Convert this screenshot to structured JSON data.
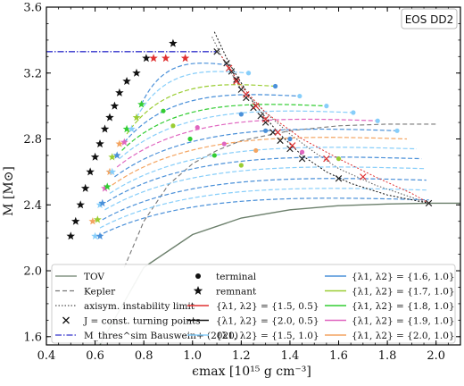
{
  "chart_data": {
    "type": "line",
    "ylabel": "M [M⊙]",
    "xlabel": "ϵmax [10¹⁵ g cm⁻³]",
    "annotation": "EOS DD2",
    "xlim": [
      0.4,
      2.1
    ],
    "ylim": [
      1.55,
      3.6
    ],
    "xticks": [
      0.4,
      0.6,
      0.8,
      1.0,
      1.2,
      1.4,
      1.6,
      1.8,
      2.0
    ],
    "xtick_labels": [
      "0.4",
      "0.6",
      "0.8",
      "1.0",
      "1.2",
      "1.4",
      "1.6",
      "1.8",
      "2.0"
    ],
    "yticks": [
      1.6,
      2.0,
      2.4,
      2.8,
      3.2,
      3.6
    ],
    "ytick_labels": [
      "1.6",
      "2.0",
      "2.4",
      "2.8",
      "3.2",
      "3.6"
    ],
    "grid": false,
    "legend_position": "bottom",
    "legend": {
      "col1": [
        {
          "key": "tov",
          "label": "TOV"
        },
        {
          "key": "kepler",
          "label": "Kepler"
        },
        {
          "key": "axisym",
          "label": "axisym. instability limit"
        },
        {
          "key": "turning",
          "label": "J = const. turning points"
        },
        {
          "key": "mthres",
          "label": "M_thres^sim Bauswein+ (2020)"
        }
      ],
      "col2": [
        {
          "key": "terminal",
          "label": "terminal"
        },
        {
          "key": "remnant",
          "label": "remnant"
        },
        {
          "key": "s15_05",
          "label": "{λ1, λ2} = {1.5, 0.5}"
        },
        {
          "key": "s20_05",
          "label": "{λ1, λ2} = {2.0, 0.5}"
        },
        {
          "key": "s15_10",
          "label": "{λ1, λ2} = {1.5, 1.0}"
        }
      ],
      "col3": [
        {
          "key": "s16_10",
          "label": "{λ1, λ2} = {1.6, 1.0}"
        },
        {
          "key": "s17_10",
          "label": "{λ1, λ2} = {1.7, 1.0}"
        },
        {
          "key": "s18_10",
          "label": "{λ1, λ2} = {1.8, 1.0}"
        },
        {
          "key": "s19_10",
          "label": "{λ1, λ2} = {1.9, 1.0}"
        },
        {
          "key": "s20_10",
          "label": "{λ1, λ2} = {2.0, 1.0}"
        }
      ]
    },
    "colors": {
      "tov": "#6b7f6b",
      "kepler": "#777777",
      "axisym": "#555555",
      "turning": "#222222",
      "mthres": "#3333cc",
      "s15_05": "#e03030",
      "s20_05": "#111111",
      "s15_10": "#87cefa",
      "s16_10": "#4a90d9",
      "s17_10": "#9acd32",
      "s18_10": "#32cd32",
      "s19_10": "#e066c0",
      "s20_10": "#f4a460"
    },
    "lines": {
      "tov": {
        "x": [
          0.62,
          0.8,
          1.0,
          1.2,
          1.4,
          1.6,
          1.8,
          1.97,
          2.1
        ],
        "y": [
          1.55,
          2.02,
          2.22,
          2.32,
          2.37,
          2.395,
          2.405,
          2.41,
          2.41
        ]
      },
      "kepler": {
        "x": [
          0.72,
          0.8,
          0.9,
          1.0,
          1.1,
          1.2,
          1.4,
          1.6,
          1.8,
          2.0
        ],
        "y": [
          2.02,
          2.3,
          2.52,
          2.65,
          2.73,
          2.79,
          2.85,
          2.88,
          2.89,
          2.89
        ]
      },
      "axisym": {
        "x": [
          1.08,
          1.13,
          1.2,
          1.3,
          1.4,
          1.5,
          1.6,
          1.75,
          1.97
        ],
        "y": [
          3.42,
          3.27,
          3.1,
          2.96,
          2.83,
          2.72,
          2.62,
          2.52,
          2.41
        ]
      },
      "mthres": {
        "x": [
          0.4,
          0.62,
          0.8,
          1.0,
          1.1
        ],
        "y": [
          3.33,
          3.33,
          3.33,
          3.33,
          3.33
        ]
      },
      "s20_05": {
        "x": [
          1.09,
          1.15,
          1.25,
          1.35,
          1.45,
          1.55,
          1.65,
          1.8,
          1.97
        ],
        "y": [
          3.45,
          3.26,
          3.02,
          2.84,
          2.7,
          2.6,
          2.53,
          2.46,
          2.41
        ]
      },
      "s15_05": {
        "x": [
          1.12,
          1.2,
          1.3,
          1.45,
          1.6,
          1.75,
          1.9,
          1.97
        ],
        "y": [
          3.3,
          3.12,
          2.96,
          2.8,
          2.68,
          2.57,
          2.47,
          2.41
        ]
      }
    },
    "turning_points": {
      "x": [
        1.1,
        1.14,
        1.16,
        1.18,
        1.2,
        1.22,
        1.25,
        1.28,
        1.3,
        1.33,
        1.36,
        1.4,
        1.45,
        1.6,
        1.97
      ],
      "y": [
        3.33,
        3.26,
        3.21,
        3.16,
        3.1,
        3.05,
        2.99,
        2.94,
        2.9,
        2.84,
        2.79,
        2.74,
        2.68,
        2.56,
        2.41
      ]
    },
    "red_crosses": {
      "x": [
        1.15,
        1.18,
        1.22,
        1.26,
        1.3,
        1.35,
        1.41,
        1.55,
        1.7
      ],
      "y": [
        3.23,
        3.15,
        3.07,
        3.0,
        2.92,
        2.84,
        2.76,
        2.68,
        2.57
      ]
    },
    "sequences": [
      {
        "color_key": "s16_10",
        "start": [
          0.79,
          3.01
        ],
        "end": [
          1.14,
          3.25
        ]
      },
      {
        "color_key": "s15_10",
        "start": [
          0.77,
          2.93
        ],
        "end": [
          1.23,
          3.2
        ]
      },
      {
        "color_key": "s17_10",
        "start": [
          0.73,
          2.83
        ],
        "end": [
          1.34,
          3.12
        ]
      },
      {
        "color_key": "s16_10",
        "start": [
          0.72,
          2.78
        ],
        "end": [
          1.44,
          3.06
        ]
      },
      {
        "color_key": "s18_10",
        "start": [
          0.71,
          2.73
        ],
        "end": [
          1.55,
          3.0
        ]
      },
      {
        "color_key": "s15_10",
        "start": [
          0.7,
          2.68
        ],
        "end": [
          1.66,
          2.96
        ]
      },
      {
        "color_key": "s19_10",
        "start": [
          0.69,
          2.63
        ],
        "end": [
          1.76,
          2.91
        ]
      },
      {
        "color_key": "s16_10",
        "start": [
          0.68,
          2.57
        ],
        "end": [
          1.84,
          2.85
        ]
      },
      {
        "color_key": "s20_10",
        "start": [
          0.67,
          2.52
        ],
        "end": [
          1.88,
          2.8
        ]
      },
      {
        "color_key": "s15_10",
        "start": [
          0.66,
          2.47
        ],
        "end": [
          1.92,
          2.74
        ]
      },
      {
        "color_key": "s16_10",
        "start": [
          0.65,
          2.42
        ],
        "end": [
          1.94,
          2.68
        ]
      },
      {
        "color_key": "s15_10",
        "start": [
          0.64,
          2.37
        ],
        "end": [
          1.95,
          2.62
        ]
      },
      {
        "color_key": "s16_10",
        "start": [
          0.63,
          2.31
        ],
        "end": [
          1.96,
          2.55
        ]
      },
      {
        "color_key": "s15_10",
        "start": [
          0.62,
          2.26
        ],
        "end": [
          1.96,
          2.49
        ]
      },
      {
        "color_key": "s16_10",
        "start": [
          0.61,
          2.21
        ],
        "end": [
          1.97,
          2.43
        ]
      }
    ],
    "black_stars": {
      "x": [
        0.5,
        0.52,
        0.54,
        0.56,
        0.58,
        0.6,
        0.62,
        0.64,
        0.66,
        0.68,
        0.7,
        0.73,
        0.77,
        0.81,
        0.92
      ],
      "y": [
        2.21,
        2.3,
        2.4,
        2.5,
        2.6,
        2.69,
        2.77,
        2.86,
        2.93,
        3.0,
        3.08,
        3.15,
        3.2,
        3.29,
        3.38
      ]
    },
    "red_stars": {
      "x": [
        0.84,
        0.89,
        0.97
      ],
      "y": [
        3.29,
        3.29,
        3.29
      ]
    },
    "colored_stars": [
      {
        "color_key": "s15_10",
        "x": 0.6,
        "y": 2.21
      },
      {
        "color_key": "s16_10",
        "x": 0.62,
        "y": 2.21
      },
      {
        "color_key": "s20_10",
        "x": 0.59,
        "y": 2.3
      },
      {
        "color_key": "s17_10",
        "x": 0.61,
        "y": 2.31
      },
      {
        "color_key": "s15_10",
        "x": 0.62,
        "y": 2.4
      },
      {
        "color_key": "s16_10",
        "x": 0.63,
        "y": 2.41
      },
      {
        "color_key": "s19_10",
        "x": 0.64,
        "y": 2.5
      },
      {
        "color_key": "s18_10",
        "x": 0.65,
        "y": 2.51
      },
      {
        "color_key": "s20_10",
        "x": 0.66,
        "y": 2.6
      },
      {
        "color_key": "s15_10",
        "x": 0.67,
        "y": 2.6
      },
      {
        "color_key": "s17_10",
        "x": 0.67,
        "y": 2.69
      },
      {
        "color_key": "s16_10",
        "x": 0.69,
        "y": 2.7
      },
      {
        "color_key": "s20_10",
        "x": 0.7,
        "y": 2.77
      },
      {
        "color_key": "s19_10",
        "x": 0.72,
        "y": 2.78
      },
      {
        "color_key": "s18_10",
        "x": 0.73,
        "y": 2.86
      },
      {
        "color_key": "s15_10",
        "x": 0.75,
        "y": 2.86
      },
      {
        "color_key": "s17_10",
        "x": 0.77,
        "y": 2.93
      },
      {
        "color_key": "s18_10",
        "x": 0.79,
        "y": 3.01
      }
    ],
    "terminal_dots": [
      {
        "color_key": "s18_10",
        "x": 0.88,
        "y": 2.97
      },
      {
        "color_key": "s17_10",
        "x": 0.92,
        "y": 2.88
      },
      {
        "color_key": "s18_10",
        "x": 0.99,
        "y": 2.8
      },
      {
        "color_key": "s19_10",
        "x": 1.02,
        "y": 2.87
      },
      {
        "color_key": "s18_10",
        "x": 1.09,
        "y": 2.7
      },
      {
        "color_key": "s19_10",
        "x": 1.13,
        "y": 2.77
      },
      {
        "color_key": "s17_10",
        "x": 1.2,
        "y": 2.64
      },
      {
        "color_key": "s20_10",
        "x": 1.26,
        "y": 2.73
      },
      {
        "color_key": "s16_10",
        "x": 1.2,
        "y": 2.95
      },
      {
        "color_key": "s15_10",
        "x": 1.23,
        "y": 3.2
      },
      {
        "color_key": "s16_10",
        "x": 1.34,
        "y": 3.12
      },
      {
        "color_key": "s15_10",
        "x": 1.44,
        "y": 3.06
      },
      {
        "color_key": "s15_10",
        "x": 1.55,
        "y": 3.0
      },
      {
        "color_key": "s15_10",
        "x": 1.66,
        "y": 2.96
      },
      {
        "color_key": "s15_10",
        "x": 1.76,
        "y": 2.91
      },
      {
        "color_key": "s15_10",
        "x": 1.84,
        "y": 2.85
      },
      {
        "color_key": "s16_10",
        "x": 1.3,
        "y": 2.85
      },
      {
        "color_key": "s16_10",
        "x": 1.4,
        "y": 2.8
      },
      {
        "color_key": "s19_10",
        "x": 1.45,
        "y": 2.72
      },
      {
        "color_key": "s17_10",
        "x": 1.6,
        "y": 2.68
      }
    ]
  }
}
